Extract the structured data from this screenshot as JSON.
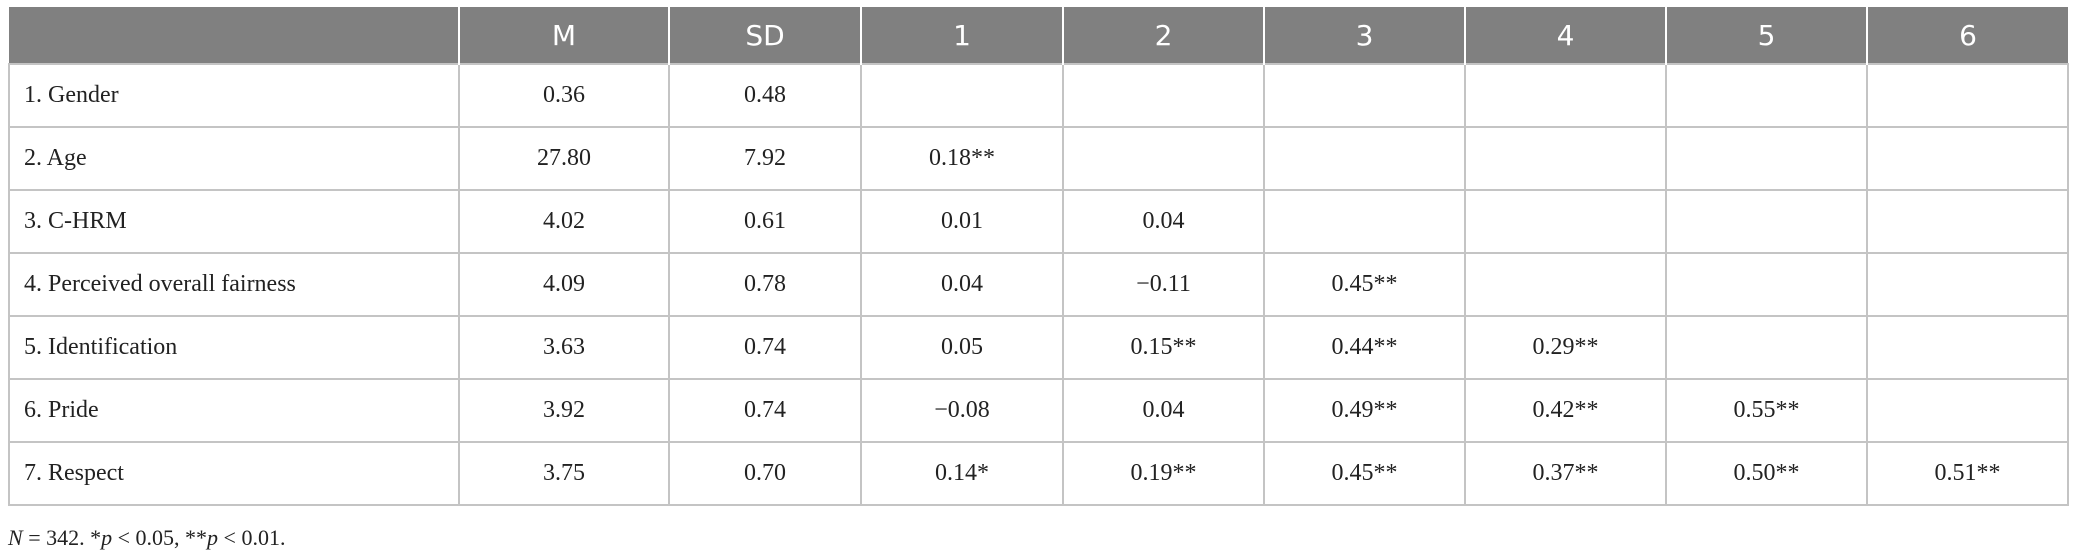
{
  "table": {
    "columns": [
      "M",
      "SD",
      "1",
      "2",
      "3",
      "4",
      "5",
      "6"
    ],
    "rows": [
      [
        "1. Gender",
        "0.36",
        "0.48"
      ],
      [
        "2. Age",
        "27.80",
        "7.92",
        "0.18**"
      ],
      [
        "3. C-HRM",
        "4.02",
        "0.61",
        "0.01",
        "0.04"
      ],
      [
        "4. Perceived overall fairness",
        "4.09",
        "0.78",
        "0.04",
        "−0.11",
        "0.45**"
      ],
      [
        "5. Identification",
        "3.63",
        "0.74",
        "0.05",
        "0.15**",
        "0.44**",
        "0.29**"
      ],
      [
        "6. Pride",
        "3.92",
        "0.74",
        "−0.08",
        "0.04",
        "0.49**",
        "0.42**",
        "0.55**"
      ],
      [
        "7. Respect",
        "3.75",
        "0.70",
        "0.14*",
        "0.19**",
        "0.45**",
        "0.37**",
        "0.50**",
        "0.51**"
      ]
    ]
  },
  "footnote": [
    "N",
    " = 342. *",
    "p",
    " < 0.05, **",
    "p",
    " < 0.01."
  ]
}
